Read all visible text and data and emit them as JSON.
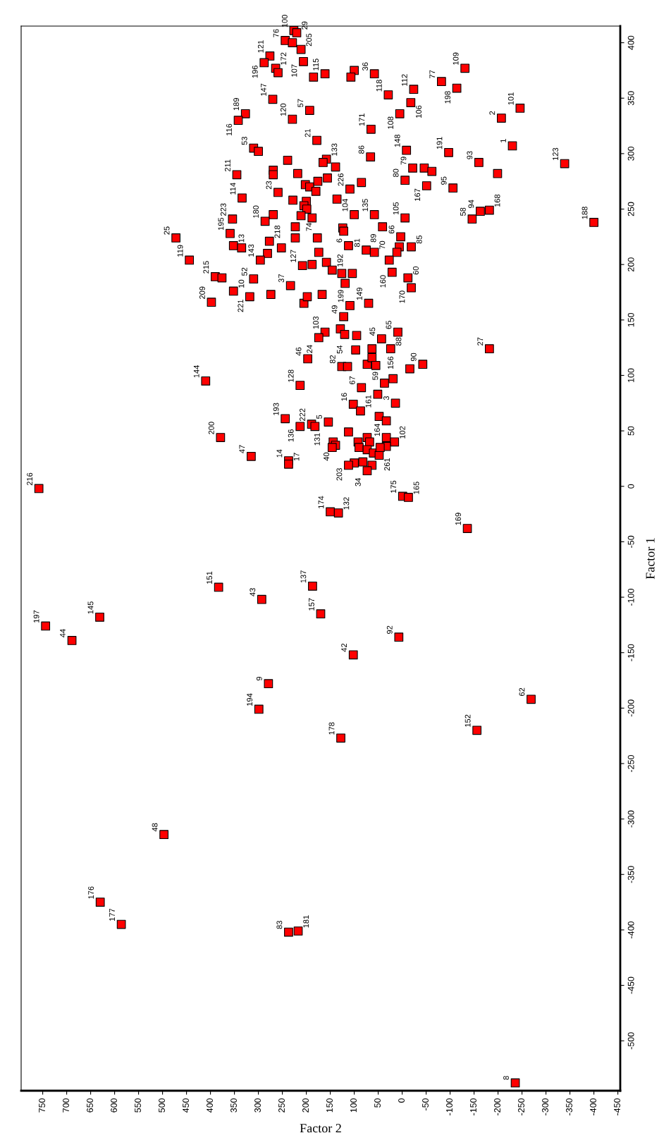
{
  "chart_data": {
    "type": "scatter",
    "xlabel": "Factor 2",
    "ylabel": "Factor 1",
    "xlim": [
      795,
      -455
    ],
    "xticks": [
      750,
      700,
      650,
      600,
      550,
      500,
      450,
      400,
      350,
      300,
      250,
      200,
      150,
      100,
      50,
      0,
      -50,
      -100,
      -150,
      -200,
      -250,
      -300,
      -350,
      -400,
      -450
    ],
    "ylim": [
      -545,
      415
    ],
    "yticks": [
      -500,
      -450,
      -400,
      -350,
      -300,
      -250,
      -200,
      -150,
      -100,
      -50,
      0,
      50,
      100,
      150,
      200,
      250,
      300,
      350,
      400
    ],
    "grid": false,
    "marker": "square",
    "series": [
      {
        "color": "#ff0000",
        "x": [
          226,
          220,
          244,
          229,
          211,
          276,
          288,
          264,
          259,
          206,
          185,
          161,
          100,
          107,
          58,
          -82,
          -24,
          29,
          -18,
          5,
          65,
          270,
          327,
          342,
          193,
          229,
          178,
          310,
          300,
          239,
          158,
          165,
          139,
          345,
          269,
          269,
          218,
          202,
          193,
          180,
          176,
          156,
          85,
          109,
          66,
          -9,
          -22,
          -46,
          -62,
          -6,
          -51,
          334,
          259,
          228,
          200,
          205,
          199,
          211,
          188,
          136,
          100,
          58,
          -6,
          269,
          286,
          354,
          223,
          124,
          122,
          41,
          3,
          -19,
          6,
          11,
          27,
          112,
          75,
          58,
          223,
          177,
          277,
          252,
          281,
          296,
          352,
          335,
          174,
          208,
          188,
          158,
          146,
          126,
          104,
          119,
          21,
          -12,
          -19,
          233,
          310,
          352,
          318,
          274,
          205,
          198,
          167,
          109,
          70,
          122,
          161,
          174,
          129,
          120,
          95,
          43,
          9,
          97,
          63,
          24,
          197,
          126,
          114,
          73,
          63,
          55,
          -16,
          -43,
          213,
          85,
          37,
          19,
          51,
          14,
          102,
          87,
          48,
          33,
          244,
          213,
          189,
          182,
          154,
          112,
          33,
          16,
          33,
          144,
          139,
          146,
          92,
          73,
          68,
          90,
          73,
          60,
          48,
          46,
          63,
          82,
          100,
          112,
          73,
          315,
          237,
          237,
          -1,
          -13,
          150,
          133,
          -182,
          -136,
          -131,
          -114,
          -246,
          -207,
          -230,
          -97,
          -160,
          -199,
          -106,
          -339,
          -146,
          -163,
          -182,
          -400,
          758,
          744,
          689,
          631,
          497,
          630,
          586,
          237,
          217,
          -236,
          379,
          410,
          383,
          293,
          187,
          170,
          7,
          102,
          279,
          299,
          128,
          -269,
          -156,
          472,
          444,
          390,
          376,
          398,
          359
        ],
        "values": [
          411,
          409,
          402,
          400,
          394,
          388,
          382,
          377,
          373,
          383,
          369,
          372,
          375,
          369,
          372,
          365,
          358,
          353,
          346,
          336,
          322,
          349,
          336,
          330,
          339,
          331,
          312,
          305,
          302,
          294,
          295,
          292,
          288,
          281,
          285,
          281,
          282,
          272,
          270,
          266,
          275,
          278,
          274,
          268,
          297,
          303,
          287,
          287,
          284,
          276,
          271,
          260,
          265,
          258,
          257,
          253,
          250,
          244,
          242,
          259,
          245,
          245,
          242,
          245,
          239,
          241,
          234,
          233,
          230,
          234,
          225,
          216,
          216,
          211,
          204,
          217,
          213,
          211,
          224,
          224,
          221,
          215,
          210,
          204,
          217,
          215,
          211,
          199,
          200,
          202,
          195,
          192,
          192,
          183,
          193,
          188,
          179,
          181,
          187,
          176,
          171,
          173,
          165,
          171,
          173,
          163,
          165,
          153,
          139,
          134,
          142,
          137,
          136,
          133,
          139,
          123,
          124,
          124,
          115,
          108,
          108,
          110,
          116,
          109,
          106,
          110,
          91,
          89,
          93,
          97,
          83,
          75,
          74,
          68,
          63,
          59,
          61,
          54,
          56,
          54,
          58,
          49,
          44,
          40,
          36,
          40,
          37,
          35,
          40,
          44,
          40,
          35,
          33,
          30,
          28,
          35,
          19,
          22,
          21,
          19,
          14,
          27,
          23,
          20,
          -9,
          -10,
          -23,
          -24,
          124,
          -38,
          377,
          359,
          341,
          332,
          307,
          301,
          292,
          282,
          269,
          291,
          241,
          248,
          249,
          238,
          -2,
          -126,
          -139,
          -118,
          -314,
          -375,
          -395,
          -402,
          -401,
          -538,
          44,
          95,
          -91,
          -102,
          -90,
          -115,
          -136,
          -152,
          -178,
          -201,
          -227,
          -192,
          -220,
          224,
          204,
          189,
          188,
          166,
          228
        ]
      }
    ],
    "annotations": [
      {
        "text": "100",
        "x": 226,
        "y": 411
      },
      {
        "text": "29",
        "x": 220,
        "y": 409
      },
      {
        "text": "76",
        "x": 244,
        "y": 402
      },
      {
        "text": "205",
        "x": 211,
        "y": 394
      },
      {
        "text": "121",
        "x": 276,
        "y": 388
      },
      {
        "text": "196",
        "x": 288,
        "y": 382
      },
      {
        "text": "172",
        "x": 264,
        "y": 377
      },
      {
        "text": "107",
        "x": 206,
        "y": 383
      },
      {
        "text": "115",
        "x": 161,
        "y": 372
      },
      {
        "text": "36",
        "x": 58,
        "y": 372
      },
      {
        "text": "77",
        "x": -82,
        "y": 365
      },
      {
        "text": "112",
        "x": -24,
        "y": 358
      },
      {
        "text": "118",
        "x": 29,
        "y": 353
      },
      {
        "text": "106",
        "x": -18,
        "y": 346
      },
      {
        "text": "108",
        "x": 5,
        "y": 336
      },
      {
        "text": "171",
        "x": 65,
        "y": 322
      },
      {
        "text": "147",
        "x": 270,
        "y": 349
      },
      {
        "text": "189",
        "x": 327,
        "y": 336
      },
      {
        "text": "116",
        "x": 342,
        "y": 330
      },
      {
        "text": "57",
        "x": 193,
        "y": 339
      },
      {
        "text": "120",
        "x": 229,
        "y": 331
      },
      {
        "text": "21",
        "x": 178,
        "y": 312
      },
      {
        "text": "53",
        "x": 310,
        "y": 305
      },
      {
        "text": "133",
        "x": 158,
        "y": 295
      },
      {
        "text": "211",
        "x": 345,
        "y": 281
      },
      {
        "text": "226",
        "x": 109,
        "y": 268
      },
      {
        "text": "86",
        "x": 66,
        "y": 297
      },
      {
        "text": "148",
        "x": -9,
        "y": 303
      },
      {
        "text": "79",
        "x": -22,
        "y": 287
      },
      {
        "text": "80",
        "x": -6,
        "y": 276
      },
      {
        "text": "167",
        "x": -51,
        "y": 271
      },
      {
        "text": "114",
        "x": 334,
        "y": 260
      },
      {
        "text": "23",
        "x": 259,
        "y": 265
      },
      {
        "text": "74",
        "x": 211,
        "y": 244
      },
      {
        "text": "104",
        "x": 100,
        "y": 245
      },
      {
        "text": "135",
        "x": 58,
        "y": 245
      },
      {
        "text": "105",
        "x": -6,
        "y": 242
      },
      {
        "text": "180",
        "x": 286,
        "y": 239
      },
      {
        "text": "223",
        "x": 354,
        "y": 241
      },
      {
        "text": "89",
        "x": 41,
        "y": 234
      },
      {
        "text": "66",
        "x": 3,
        "y": 225
      },
      {
        "text": "85",
        "x": -19,
        "y": 216
      },
      {
        "text": "6",
        "x": 112,
        "y": 217
      },
      {
        "text": "81",
        "x": 75,
        "y": 213
      },
      {
        "text": "70",
        "x": 58,
        "y": 211
      },
      {
        "text": "218",
        "x": 277,
        "y": 221
      },
      {
        "text": "143",
        "x": 296,
        "y": 204
      },
      {
        "text": "13",
        "x": 352,
        "y": 217
      },
      {
        "text": "127",
        "x": 208,
        "y": 199
      },
      {
        "text": "192",
        "x": 146,
        "y": 195
      },
      {
        "text": "160",
        "x": 21,
        "y": 193
      },
      {
        "text": "60",
        "x": -12,
        "y": 188
      },
      {
        "text": "170",
        "x": -19,
        "y": 179
      },
      {
        "text": "37",
        "x": 233,
        "y": 181
      },
      {
        "text": "52",
        "x": 310,
        "y": 187
      },
      {
        "text": "10",
        "x": 352,
        "y": 176
      },
      {
        "text": "221",
        "x": 318,
        "y": 171
      },
      {
        "text": "199",
        "x": 109,
        "y": 163
      },
      {
        "text": "149",
        "x": 70,
        "y": 165
      },
      {
        "text": "49",
        "x": 122,
        "y": 153
      },
      {
        "text": "103",
        "x": 161,
        "y": 139
      },
      {
        "text": "24",
        "x": 174,
        "y": 134
      },
      {
        "text": "45",
        "x": 43,
        "y": 133
      },
      {
        "text": "65",
        "x": 9,
        "y": 139
      },
      {
        "text": "54",
        "x": 97,
        "y": 123
      },
      {
        "text": "88",
        "x": 24,
        "y": 124
      },
      {
        "text": "46",
        "x": 197,
        "y": 115
      },
      {
        "text": "82",
        "x": 126,
        "y": 108
      },
      {
        "text": "156",
        "x": 55,
        "y": 109
      },
      {
        "text": "90",
        "x": -43,
        "y": 110
      },
      {
        "text": "128",
        "x": 213,
        "y": 91
      },
      {
        "text": "67",
        "x": 85,
        "y": 89
      },
      {
        "text": "59",
        "x": 37,
        "y": 93
      },
      {
        "text": "3",
        "x": 14,
        "y": 75
      },
      {
        "text": "16",
        "x": 102,
        "y": 74
      },
      {
        "text": "161",
        "x": 87,
        "y": 68
      },
      {
        "text": "164",
        "x": 33,
        "y": 59
      },
      {
        "text": "193",
        "x": 244,
        "y": 61
      },
      {
        "text": "136",
        "x": 213,
        "y": 54
      },
      {
        "text": "222",
        "x": 189,
        "y": 56
      },
      {
        "text": "5",
        "x": 154,
        "y": 58
      },
      {
        "text": "102",
        "x": 16,
        "y": 40
      },
      {
        "text": "131",
        "x": 144,
        "y": 40
      },
      {
        "text": "40",
        "x": 139,
        "y": 37
      },
      {
        "text": "261",
        "x": 48,
        "y": 28
      },
      {
        "text": "203",
        "x": 112,
        "y": 19
      },
      {
        "text": "34",
        "x": 73,
        "y": 14
      },
      {
        "text": "47",
        "x": 315,
        "y": 27
      },
      {
        "text": "14",
        "x": 237,
        "y": 23
      },
      {
        "text": "17",
        "x": 237,
        "y": 20
      },
      {
        "text": "175",
        "x": -1,
        "y": -9
      },
      {
        "text": "165",
        "x": -13,
        "y": -10
      },
      {
        "text": "174",
        "x": 150,
        "y": -23
      },
      {
        "text": "132",
        "x": 133,
        "y": -24
      },
      {
        "text": "27",
        "x": -182,
        "y": 124
      },
      {
        "text": "169",
        "x": -136,
        "y": -38
      },
      {
        "text": "109",
        "x": -131,
        "y": 377
      },
      {
        "text": "198",
        "x": -114,
        "y": 359
      },
      {
        "text": "101",
        "x": -246,
        "y": 341
      },
      {
        "text": "2",
        "x": -207,
        "y": 332
      },
      {
        "text": "1",
        "x": -230,
        "y": 307
      },
      {
        "text": "191",
        "x": -97,
        "y": 301
      },
      {
        "text": "93",
        "x": -160,
        "y": 292
      },
      {
        "text": "95",
        "x": -106,
        "y": 269
      },
      {
        "text": "123",
        "x": -339,
        "y": 291
      },
      {
        "text": "58",
        "x": -146,
        "y": 241
      },
      {
        "text": "94",
        "x": -163,
        "y": 248
      },
      {
        "text": "168",
        "x": -182,
        "y": 249
      },
      {
        "text": "188",
        "x": -400,
        "y": 238
      },
      {
        "text": "216",
        "x": 758,
        "y": -2
      },
      {
        "text": "197",
        "x": 744,
        "y": -126
      },
      {
        "text": "44",
        "x": 689,
        "y": -139
      },
      {
        "text": "145",
        "x": 631,
        "y": -118
      },
      {
        "text": "48",
        "x": 497,
        "y": -314
      },
      {
        "text": "176",
        "x": 630,
        "y": -375
      },
      {
        "text": "177",
        "x": 586,
        "y": -395
      },
      {
        "text": "83",
        "x": 237,
        "y": -402
      },
      {
        "text": "181",
        "x": 217,
        "y": -401
      },
      {
        "text": "8",
        "x": -236,
        "y": -538
      },
      {
        "text": "200",
        "x": 379,
        "y": 44
      },
      {
        "text": "144",
        "x": 410,
        "y": 95
      },
      {
        "text": "151",
        "x": 383,
        "y": -91
      },
      {
        "text": "43",
        "x": 293,
        "y": -102
      },
      {
        "text": "137",
        "x": 187,
        "y": -90
      },
      {
        "text": "157",
        "x": 170,
        "y": -115
      },
      {
        "text": "92",
        "x": 7,
        "y": -136
      },
      {
        "text": "42",
        "x": 102,
        "y": -152
      },
      {
        "text": "9",
        "x": 279,
        "y": -178
      },
      {
        "text": "194",
        "x": 299,
        "y": -201
      },
      {
        "text": "178",
        "x": 128,
        "y": -227
      },
      {
        "text": "62",
        "x": -269,
        "y": -192
      },
      {
        "text": "152",
        "x": -156,
        "y": -220
      },
      {
        "text": "25",
        "x": 472,
        "y": 224
      },
      {
        "text": "119",
        "x": 444,
        "y": 204
      },
      {
        "text": "215",
        "x": 390,
        "y": 189
      },
      {
        "text": "209",
        "x": 398,
        "y": 166
      },
      {
        "text": "195",
        "x": 359,
        "y": 228
      }
    ]
  }
}
